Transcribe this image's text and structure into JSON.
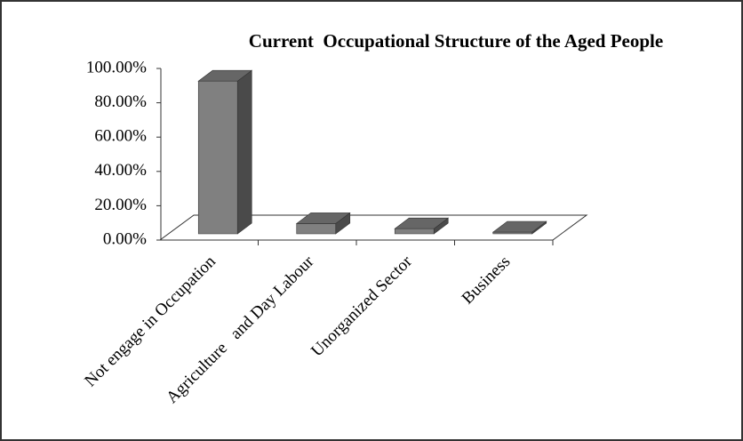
{
  "chart_data": {
    "type": "bar3d",
    "title": "Current  Occupational Structure of the Aged People",
    "categories": [
      "Not engage in Occupation",
      "Agriculture   and Day Labour",
      "Unorganized Sector",
      "Business"
    ],
    "values": [
      89,
      6,
      3,
      1
    ],
    "color": "#808080",
    "ylim": [
      0,
      100
    ],
    "yticks": [
      {
        "value": 0,
        "label": "0.00%"
      },
      {
        "value": 20,
        "label": "20.00%"
      },
      {
        "value": 40,
        "label": "40.00%"
      },
      {
        "value": 60,
        "label": "60.00%"
      },
      {
        "value": 80,
        "label": "80.00%"
      },
      {
        "value": 100,
        "label": "100.00%"
      }
    ],
    "grid": false
  }
}
